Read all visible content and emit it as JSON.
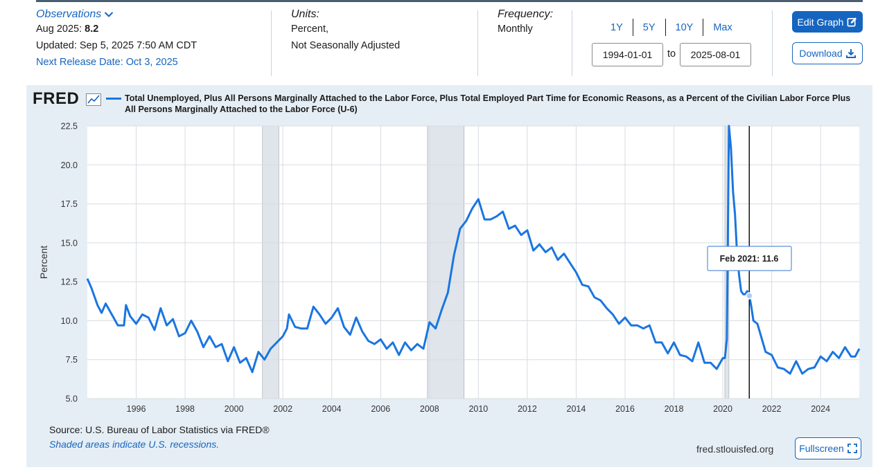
{
  "header": {
    "observations_label": "Observations",
    "obs_date": "Aug 2025:",
    "obs_value": "8.2",
    "updated": "Updated: Sep 5, 2025 7:50 AM CDT",
    "next_release": "Next Release Date: Oct 3, 2025",
    "units_label": "Units:",
    "units_line1": "Percent,",
    "units_line2": "Not Seasonally Adjusted",
    "frequency_label": "Frequency:",
    "frequency_value": "Monthly",
    "range_buttons": [
      "1Y",
      "5Y",
      "10Y",
      "Max"
    ],
    "start_date": "1994-01-01",
    "to_label": "to",
    "end_date": "2025-08-01",
    "edit_graph": "Edit Graph",
    "download": "Download"
  },
  "footer": {
    "source": "Source: U.S. Bureau of Labor Statistics via FRED®",
    "shaded_note": "Shaded areas indicate U.S. recessions.",
    "site": "fred.stlouisfed.org",
    "fullscreen": "Fullscreen"
  },
  "logo_text": "FRED",
  "colors": {
    "accent": "#1565c0",
    "series": "#1a75e0",
    "recession": "#dfe5ea",
    "panel": "#e6eef5"
  },
  "chart_data": {
    "type": "line",
    "title": "Total Unemployed, Plus All Persons Marginally Attached to the Labor Force, Plus Total Employed Part Time for Economic Reasons, as a Percent of the Civilian Labor Force Plus All Persons Marginally Attached to the Labor Force (U-6)",
    "xlabel": "",
    "ylabel": "Percent",
    "ylim": [
      5.0,
      22.5
    ],
    "xlim": [
      "1994-01",
      "2025-08"
    ],
    "yticks": [
      "5.0",
      "7.5",
      "10.0",
      "12.5",
      "15.0",
      "17.5",
      "20.0",
      "22.5"
    ],
    "xticks": [
      "1996",
      "1998",
      "2000",
      "2002",
      "2004",
      "2006",
      "2008",
      "2010",
      "2012",
      "2014",
      "2016",
      "2018",
      "2020",
      "2022",
      "2024"
    ],
    "grid": true,
    "recessions": [
      [
        "2001-03",
        "2001-11"
      ],
      [
        "2007-12",
        "2009-06"
      ],
      [
        "2020-02",
        "2020-04"
      ]
    ],
    "tooltip": {
      "label": "Feb 2021:",
      "value": "11.6",
      "date": "2021-02"
    },
    "series": [
      {
        "name": "Total Unemployed, Plus All Persons Marginally Attached to the Labor Force, Plus Total Employed Part Time for Economic Reasons, as a Percent of the Civilian Labor Force Plus All Persons Marginally Attached to the Labor Force (U-6)",
        "points": [
          [
            "1994-01",
            12.7
          ],
          [
            "1994-03",
            12.1
          ],
          [
            "1994-06",
            11.0
          ],
          [
            "1994-08",
            10.5
          ],
          [
            "1994-10",
            11.1
          ],
          [
            "1995-01",
            10.4
          ],
          [
            "1995-04",
            9.7
          ],
          [
            "1995-07",
            9.7
          ],
          [
            "1995-08",
            11.0
          ],
          [
            "1995-10",
            10.3
          ],
          [
            "1996-01",
            9.8
          ],
          [
            "1996-04",
            10.4
          ],
          [
            "1996-07",
            10.2
          ],
          [
            "1996-10",
            9.4
          ],
          [
            "1997-01",
            10.8
          ],
          [
            "1997-04",
            9.7
          ],
          [
            "1997-07",
            10.1
          ],
          [
            "1997-10",
            9.0
          ],
          [
            "1998-01",
            9.2
          ],
          [
            "1998-04",
            10.0
          ],
          [
            "1998-07",
            9.3
          ],
          [
            "1998-10",
            8.3
          ],
          [
            "1999-01",
            9.0
          ],
          [
            "1999-04",
            8.3
          ],
          [
            "1999-07",
            8.5
          ],
          [
            "1999-10",
            7.4
          ],
          [
            "2000-01",
            8.3
          ],
          [
            "2000-04",
            7.3
          ],
          [
            "2000-07",
            7.6
          ],
          [
            "2000-10",
            6.7
          ],
          [
            "2001-01",
            8.0
          ],
          [
            "2001-04",
            7.5
          ],
          [
            "2001-07",
            8.2
          ],
          [
            "2001-10",
            8.6
          ],
          [
            "2002-01",
            9.0
          ],
          [
            "2002-03",
            9.5
          ],
          [
            "2002-04",
            10.4
          ],
          [
            "2002-07",
            9.6
          ],
          [
            "2002-10",
            9.5
          ],
          [
            "2003-01",
            9.5
          ],
          [
            "2003-04",
            10.9
          ],
          [
            "2003-07",
            10.4
          ],
          [
            "2003-10",
            9.8
          ],
          [
            "2004-01",
            10.2
          ],
          [
            "2004-04",
            10.8
          ],
          [
            "2004-07",
            9.6
          ],
          [
            "2004-10",
            9.1
          ],
          [
            "2005-01",
            10.2
          ],
          [
            "2005-04",
            9.3
          ],
          [
            "2005-07",
            8.7
          ],
          [
            "2005-10",
            8.5
          ],
          [
            "2006-01",
            8.8
          ],
          [
            "2006-04",
            8.2
          ],
          [
            "2006-07",
            8.6
          ],
          [
            "2006-10",
            7.8
          ],
          [
            "2007-01",
            8.6
          ],
          [
            "2007-04",
            8.1
          ],
          [
            "2007-07",
            8.5
          ],
          [
            "2007-10",
            8.2
          ],
          [
            "2008-01",
            9.9
          ],
          [
            "2008-04",
            9.5
          ],
          [
            "2008-07",
            10.7
          ],
          [
            "2008-10",
            11.8
          ],
          [
            "2009-01",
            14.2
          ],
          [
            "2009-04",
            15.9
          ],
          [
            "2009-07",
            16.4
          ],
          [
            "2009-10",
            17.2
          ],
          [
            "2010-01",
            17.8
          ],
          [
            "2010-04",
            16.5
          ],
          [
            "2010-07",
            16.5
          ],
          [
            "2010-10",
            16.7
          ],
          [
            "2011-01",
            17.0
          ],
          [
            "2011-04",
            15.9
          ],
          [
            "2011-07",
            16.1
          ],
          [
            "2011-10",
            15.5
          ],
          [
            "2012-01",
            15.8
          ],
          [
            "2012-04",
            14.5
          ],
          [
            "2012-07",
            14.9
          ],
          [
            "2012-10",
            14.4
          ],
          [
            "2013-01",
            14.7
          ],
          [
            "2013-04",
            13.9
          ],
          [
            "2013-07",
            14.3
          ],
          [
            "2013-10",
            13.7
          ],
          [
            "2014-01",
            13.1
          ],
          [
            "2014-04",
            12.3
          ],
          [
            "2014-07",
            12.2
          ],
          [
            "2014-10",
            11.5
          ],
          [
            "2015-01",
            11.3
          ],
          [
            "2015-04",
            10.8
          ],
          [
            "2015-07",
            10.4
          ],
          [
            "2015-10",
            9.8
          ],
          [
            "2016-01",
            10.2
          ],
          [
            "2016-04",
            9.7
          ],
          [
            "2016-07",
            9.7
          ],
          [
            "2016-10",
            9.5
          ],
          [
            "2017-01",
            9.7
          ],
          [
            "2017-04",
            8.6
          ],
          [
            "2017-07",
            8.6
          ],
          [
            "2017-10",
            7.9
          ],
          [
            "2018-01",
            8.6
          ],
          [
            "2018-04",
            7.8
          ],
          [
            "2018-07",
            7.7
          ],
          [
            "2018-10",
            7.4
          ],
          [
            "2019-01",
            8.6
          ],
          [
            "2019-04",
            7.3
          ],
          [
            "2019-07",
            7.3
          ],
          [
            "2019-10",
            6.9
          ],
          [
            "2020-01",
            7.6
          ],
          [
            "2020-02",
            7.6
          ],
          [
            "2020-03",
            8.8
          ],
          [
            "2020-04",
            22.5
          ],
          [
            "2020-05",
            21.1
          ],
          [
            "2020-06",
            18.3
          ],
          [
            "2020-07",
            16.8
          ],
          [
            "2020-08",
            14.3
          ],
          [
            "2020-09",
            12.9
          ],
          [
            "2020-10",
            11.9
          ],
          [
            "2020-11",
            11.7
          ],
          [
            "2020-12",
            11.7
          ],
          [
            "2021-01",
            11.9
          ],
          [
            "2021-02",
            11.6
          ],
          [
            "2021-03",
            10.9
          ],
          [
            "2021-04",
            10.0
          ],
          [
            "2021-06",
            9.8
          ],
          [
            "2021-08",
            8.9
          ],
          [
            "2021-10",
            8.0
          ],
          [
            "2022-01",
            7.8
          ],
          [
            "2022-04",
            7.0
          ],
          [
            "2022-07",
            6.9
          ],
          [
            "2022-10",
            6.6
          ],
          [
            "2023-01",
            7.4
          ],
          [
            "2023-04",
            6.6
          ],
          [
            "2023-07",
            6.9
          ],
          [
            "2023-10",
            7.0
          ],
          [
            "2024-01",
            7.7
          ],
          [
            "2024-04",
            7.4
          ],
          [
            "2024-07",
            8.0
          ],
          [
            "2024-10",
            7.6
          ],
          [
            "2025-01",
            8.3
          ],
          [
            "2025-04",
            7.7
          ],
          [
            "2025-06",
            7.7
          ],
          [
            "2025-08",
            8.2
          ]
        ]
      }
    ]
  }
}
